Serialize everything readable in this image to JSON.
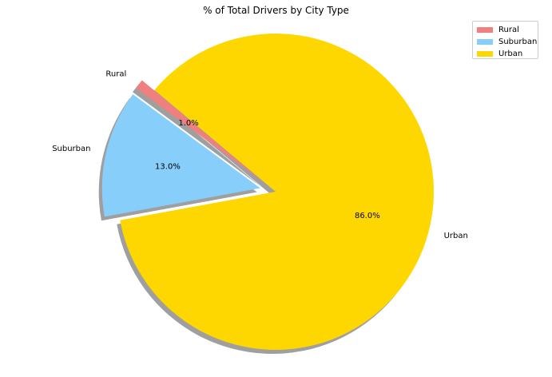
{
  "chart_data": {
    "type": "pie",
    "title": "% of Total Drivers by City Type",
    "categories": [
      "Rural",
      "Suburban",
      "Urban"
    ],
    "values": [
      1.0,
      13.0,
      86.0
    ],
    "pct_labels": [
      "1.0%",
      "13.0%",
      "86.0%"
    ],
    "colors": [
      "#F08080",
      "#87CEFA",
      "#FFD700"
    ],
    "explode": [
      0.1,
      0.1,
      0
    ],
    "startangle_deg": 140,
    "shadow": true,
    "legend_placement": "top-right",
    "legend": [
      {
        "label": "Rural",
        "color": "#F08080"
      },
      {
        "label": "Suburban",
        "color": "#87CEFA"
      },
      {
        "label": "Urban",
        "color": "#FFD700"
      }
    ]
  }
}
